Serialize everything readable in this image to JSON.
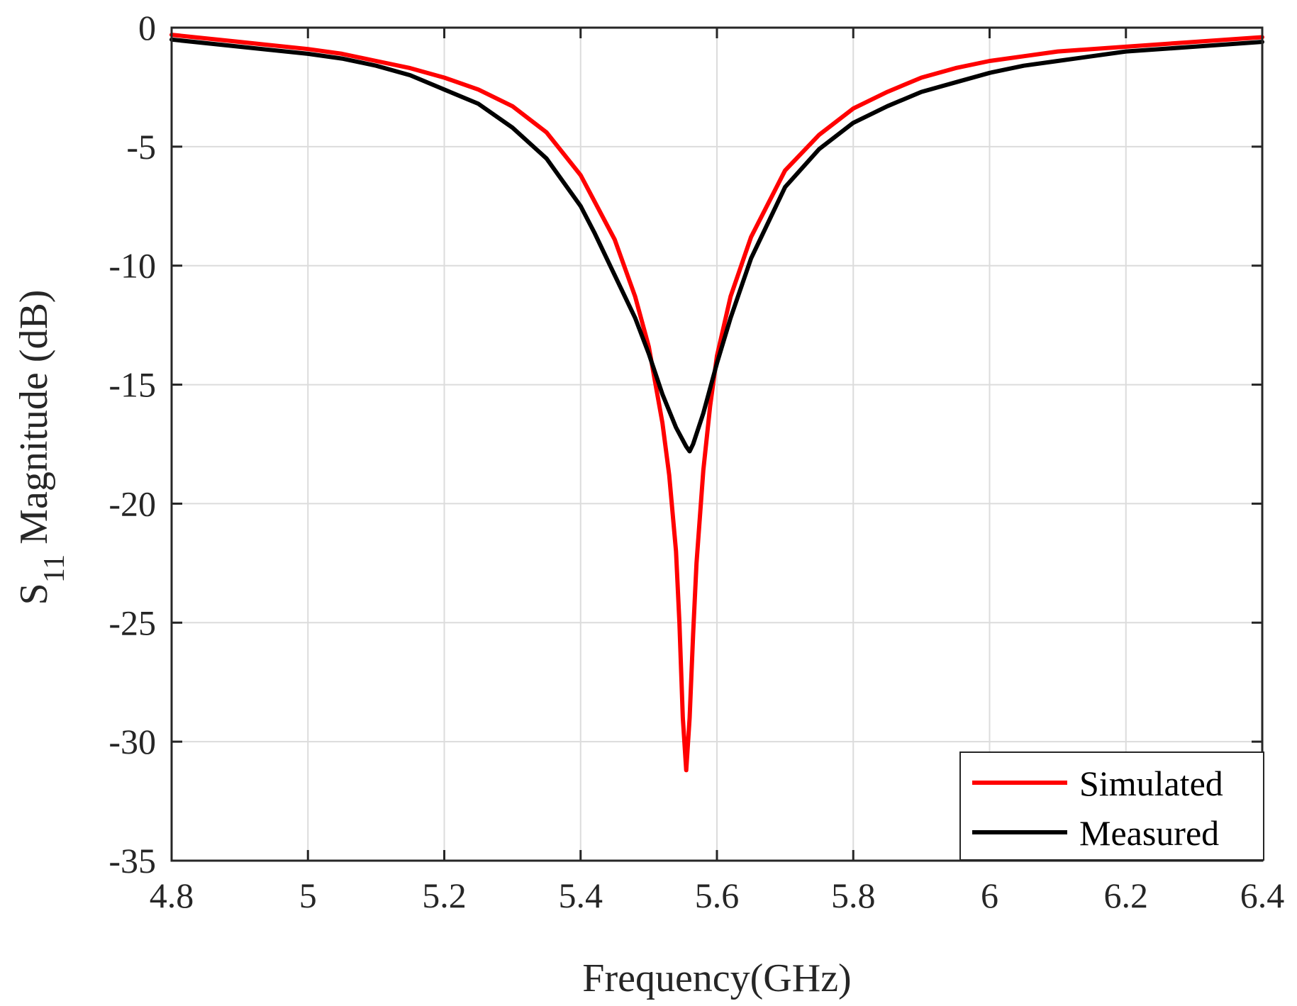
{
  "chart_data": {
    "type": "line",
    "title": "",
    "xlabel": "Frequency(GHz)",
    "ylabel_main": "S",
    "ylabel_sub": "11",
    "ylabel_rest": " Magnitude (dB)",
    "xlim": [
      4.8,
      6.4
    ],
    "ylim": [
      -35,
      0
    ],
    "xticks": [
      4.8,
      5.0,
      5.2,
      5.4,
      5.6,
      5.8,
      6.0,
      6.2,
      6.4
    ],
    "xtick_labels": [
      "4.8",
      "5",
      "5.2",
      "5.4",
      "5.6",
      "5.8",
      "6",
      "6.2",
      "6.4"
    ],
    "yticks": [
      0,
      -5,
      -10,
      -15,
      -20,
      -25,
      -30,
      -35
    ],
    "ytick_labels": [
      "0",
      "-5",
      "-10",
      "-15",
      "-20",
      "-25",
      "-30",
      "-35"
    ],
    "grid": true,
    "legend_position": "bottom-right",
    "series": [
      {
        "name": "Simulated",
        "color": "#ff0000",
        "x": [
          4.8,
          4.9,
          5.0,
          5.05,
          5.1,
          5.15,
          5.2,
          5.25,
          5.3,
          5.35,
          5.4,
          5.45,
          5.48,
          5.5,
          5.52,
          5.53,
          5.54,
          5.545,
          5.55,
          5.555,
          5.56,
          5.565,
          5.57,
          5.58,
          5.59,
          5.6,
          5.62,
          5.65,
          5.7,
          5.75,
          5.8,
          5.85,
          5.9,
          5.95,
          6.0,
          6.05,
          6.1,
          6.2,
          6.3,
          6.4
        ],
        "y": [
          -0.3,
          -0.6,
          -0.9,
          -1.1,
          -1.4,
          -1.7,
          -2.1,
          -2.6,
          -3.3,
          -4.4,
          -6.2,
          -8.9,
          -11.3,
          -13.4,
          -16.6,
          -18.8,
          -22.0,
          -25.0,
          -29.0,
          -31.2,
          -29.0,
          -25.5,
          -22.5,
          -18.6,
          -15.9,
          -13.8,
          -11.3,
          -8.8,
          -6.0,
          -4.5,
          -3.4,
          -2.7,
          -2.1,
          -1.7,
          -1.4,
          -1.2,
          -1.0,
          -0.8,
          -0.6,
          -0.4
        ]
      },
      {
        "name": "Measured",
        "color": "#000000",
        "x": [
          4.8,
          4.9,
          5.0,
          5.05,
          5.1,
          5.15,
          5.2,
          5.25,
          5.3,
          5.35,
          5.4,
          5.42,
          5.45,
          5.48,
          5.5,
          5.52,
          5.54,
          5.555,
          5.56,
          5.565,
          5.58,
          5.6,
          5.62,
          5.65,
          5.7,
          5.75,
          5.8,
          5.85,
          5.9,
          5.95,
          6.0,
          6.05,
          6.1,
          6.2,
          6.3,
          6.4
        ],
        "y": [
          -0.5,
          -0.8,
          -1.1,
          -1.3,
          -1.6,
          -2.0,
          -2.6,
          -3.2,
          -4.2,
          -5.5,
          -7.5,
          -8.6,
          -10.4,
          -12.2,
          -13.7,
          -15.4,
          -16.8,
          -17.6,
          -17.8,
          -17.5,
          -16.2,
          -14.1,
          -12.2,
          -9.7,
          -6.7,
          -5.1,
          -4.0,
          -3.3,
          -2.7,
          -2.3,
          -1.9,
          -1.6,
          -1.4,
          -1.0,
          -0.8,
          -0.6
        ]
      }
    ]
  }
}
